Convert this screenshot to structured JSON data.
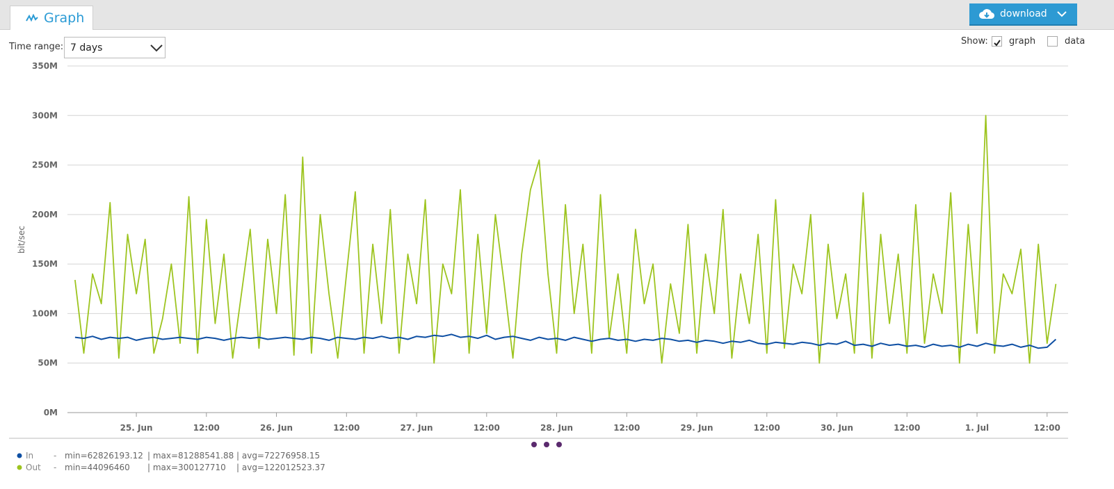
{
  "ui": {
    "tab": "Graph",
    "download": "download",
    "time_range_label": "Time range:",
    "time_range_value": "7 days",
    "show_label": "Show:",
    "show_options": [
      "graph",
      "data"
    ]
  },
  "chart_data": {
    "type": "line",
    "y_label": "bit/sec",
    "xlim": [
      -11.8,
      159.6
    ],
    "xticks": [
      {
        "value": 0,
        "label": "25. Jun"
      },
      {
        "value": 12,
        "label": "12:00"
      },
      {
        "value": 24,
        "label": "26. Jun"
      },
      {
        "value": 36,
        "label": "12:00"
      },
      {
        "value": 48,
        "label": "27. Jun"
      },
      {
        "value": 60,
        "label": "12:00"
      },
      {
        "value": 72,
        "label": "28. Jun"
      },
      {
        "value": 84,
        "label": "12:00"
      },
      {
        "value": 96,
        "label": "29. Jun"
      },
      {
        "value": 108,
        "label": "12:00"
      },
      {
        "value": 120,
        "label": "30. Jun"
      },
      {
        "value": 132,
        "label": "12:00"
      },
      {
        "value": 144,
        "label": "1. Jul"
      },
      {
        "value": 156,
        "label": "12:00"
      }
    ],
    "ylim": [
      0,
      350000000.0
    ],
    "yticks": [
      {
        "value": 0,
        "label": "0M"
      },
      {
        "value": 50000000.0,
        "label": "50M"
      },
      {
        "value": 100000000.0,
        "label": "100M"
      },
      {
        "value": 150000000.0,
        "label": "150M"
      },
      {
        "value": 200000000.0,
        "label": "200M"
      },
      {
        "value": 250000000.0,
        "label": "250M"
      },
      {
        "value": 300000000.0,
        "label": "300M"
      },
      {
        "value": 350000000.0,
        "label": "350M"
      }
    ],
    "grid": true,
    "x": [
      -10.5,
      -9,
      -7.5,
      -6,
      -4.5,
      -3,
      -1.5,
      0,
      1.5,
      3,
      4.5,
      6,
      7.5,
      9,
      10.5,
      12,
      13.5,
      15,
      16.5,
      18,
      19.5,
      21,
      22.5,
      24,
      25.5,
      27,
      28.5,
      30,
      31.5,
      33,
      34.5,
      36,
      37.5,
      39,
      40.5,
      42,
      43.5,
      45,
      46.5,
      48,
      49.5,
      51,
      52.5,
      54,
      55.5,
      57,
      58.5,
      60,
      61.5,
      63,
      64.5,
      66,
      67.5,
      69,
      70.5,
      72,
      73.5,
      75,
      76.5,
      78,
      79.5,
      81,
      82.5,
      84,
      85.5,
      87,
      88.5,
      90,
      91.5,
      93,
      94.5,
      96,
      97.5,
      99,
      100.5,
      102,
      103.5,
      105,
      106.5,
      108,
      109.5,
      111,
      112.5,
      114,
      115.5,
      117,
      118.5,
      120,
      121.5,
      123,
      124.5,
      126,
      127.5,
      129,
      130.5,
      132,
      133.5,
      135,
      136.5,
      138,
      139.5,
      141,
      142.5,
      144,
      145.5,
      147,
      148.5,
      150,
      151.5,
      153,
      154.5,
      156,
      157.5
    ],
    "series": [
      {
        "name": "In",
        "color": "#0e4fa3",
        "stats": [
          "min=62826193.12",
          "| max=81288541.88",
          "| avg=72276958.15"
        ],
        "values": [
          76000000.0,
          75000000.0,
          77000000.0,
          74000000.0,
          76000000.0,
          75000000.0,
          76000000.0,
          73000000.0,
          75000000.0,
          76000000.0,
          74000000.0,
          75000000.0,
          76000000.0,
          75000000.0,
          74000000.0,
          76000000.0,
          75000000.0,
          73000000.0,
          75000000.0,
          76000000.0,
          75000000.0,
          76000000.0,
          74000000.0,
          75000000.0,
          76000000.0,
          75000000.0,
          74000000.0,
          76000000.0,
          75000000.0,
          73000000.0,
          76000000.0,
          75000000.0,
          74000000.0,
          76000000.0,
          75000000.0,
          77000000.0,
          75000000.0,
          76000000.0,
          74000000.0,
          77000000.0,
          76000000.0,
          78000000.0,
          77000000.0,
          79000000.0,
          76000000.0,
          77000000.0,
          75000000.0,
          78000000.0,
          74000000.0,
          76000000.0,
          77000000.0,
          75000000.0,
          73000000.0,
          76000000.0,
          74000000.0,
          75000000.0,
          73000000.0,
          76000000.0,
          74000000.0,
          72000000.0,
          74000000.0,
          75000000.0,
          73000000.0,
          74000000.0,
          72000000.0,
          74000000.0,
          73000000.0,
          75000000.0,
          74000000.0,
          72000000.0,
          73000000.0,
          71000000.0,
          73000000.0,
          72000000.0,
          70000000.0,
          72000000.0,
          71000000.0,
          73000000.0,
          70000000.0,
          69000000.0,
          71000000.0,
          70000000.0,
          69000000.0,
          71000000.0,
          70000000.0,
          68000000.0,
          70000000.0,
          69000000.0,
          72000000.0,
          68000000.0,
          69000000.0,
          67000000.0,
          70000000.0,
          68000000.0,
          69000000.0,
          67000000.0,
          68000000.0,
          66000000.0,
          69000000.0,
          67000000.0,
          68000000.0,
          66000000.0,
          69000000.0,
          67000000.0,
          70000000.0,
          68000000.0,
          67000000.0,
          69000000.0,
          66000000.0,
          68000000.0,
          65000000.0,
          66000000.0,
          74000000.0
        ]
      },
      {
        "name": "Out",
        "color": "#9dc41f",
        "stats": [
          "min=44096460",
          "| max=300127710",
          "| avg=122012523.37"
        ],
        "values": [
          134000000.0,
          60000000.0,
          140000000.0,
          110000000.0,
          212000000.0,
          55000000.0,
          180000000.0,
          120000000.0,
          175000000.0,
          60000000.0,
          95000000.0,
          150000000.0,
          70000000.0,
          218000000.0,
          60000000.0,
          195000000.0,
          90000000.0,
          160000000.0,
          55000000.0,
          120000000.0,
          185000000.0,
          65000000.0,
          175000000.0,
          100000000.0,
          220000000.0,
          58000000.0,
          258000000.0,
          60000000.0,
          200000000.0,
          120000000.0,
          55000000.0,
          140000000.0,
          223000000.0,
          60000000.0,
          170000000.0,
          90000000.0,
          205000000.0,
          60000000.0,
          160000000.0,
          110000000.0,
          215000000.0,
          50000000.0,
          150000000.0,
          120000000.0,
          225000000.0,
          60000000.0,
          180000000.0,
          80000000.0,
          200000000.0,
          130000000.0,
          55000000.0,
          160000000.0,
          225000000.0,
          255000000.0,
          140000000.0,
          60000000.0,
          210000000.0,
          100000000.0,
          170000000.0,
          60000000.0,
          220000000.0,
          75000000.0,
          140000000.0,
          60000000.0,
          185000000.0,
          110000000.0,
          150000000.0,
          50000000.0,
          130000000.0,
          80000000.0,
          190000000.0,
          60000000.0,
          160000000.0,
          100000000.0,
          205000000.0,
          55000000.0,
          140000000.0,
          90000000.0,
          180000000.0,
          60000000.0,
          215000000.0,
          65000000.0,
          150000000.0,
          120000000.0,
          200000000.0,
          50000000.0,
          170000000.0,
          95000000.0,
          140000000.0,
          60000000.0,
          222000000.0,
          55000000.0,
          180000000.0,
          90000000.0,
          160000000.0,
          60000000.0,
          210000000.0,
          70000000.0,
          140000000.0,
          100000000.0,
          222000000.0,
          50000000.0,
          190000000.0,
          80000000.0,
          300000000.0,
          60000000.0,
          140000000.0,
          120000000.0,
          165000000.0,
          50000000.0,
          170000000.0,
          70000000.0,
          130000000.0
        ]
      }
    ]
  }
}
